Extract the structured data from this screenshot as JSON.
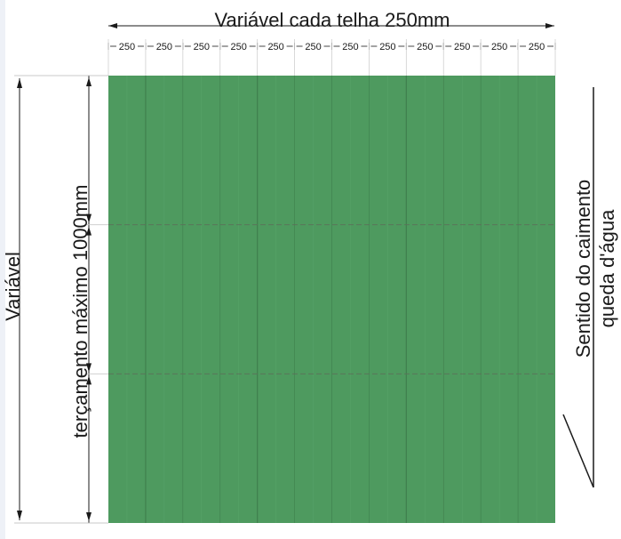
{
  "top_dimension": {
    "title": "Variável cada telha 250mm",
    "segment_labels": [
      "250",
      "250",
      "250",
      "250",
      "250",
      "250",
      "250",
      "250",
      "250",
      "250",
      "250",
      "250"
    ]
  },
  "left_dimension": {
    "outer_label": "Variável",
    "inner_label": "terçamento máximo 1000mm"
  },
  "roof_panel": {
    "color": "#4e9a5f",
    "tile_count": 12,
    "purlin_divisions": 3
  },
  "slope_note": {
    "line1": "Sentido do caimento",
    "line2": "queda d'água"
  },
  "colors": {
    "panel_fill": "#4e9a5f",
    "panel_line": "#3f7f4d",
    "purlin_line": "#5b6f5a",
    "dimension_line": "#1a1a1a"
  }
}
